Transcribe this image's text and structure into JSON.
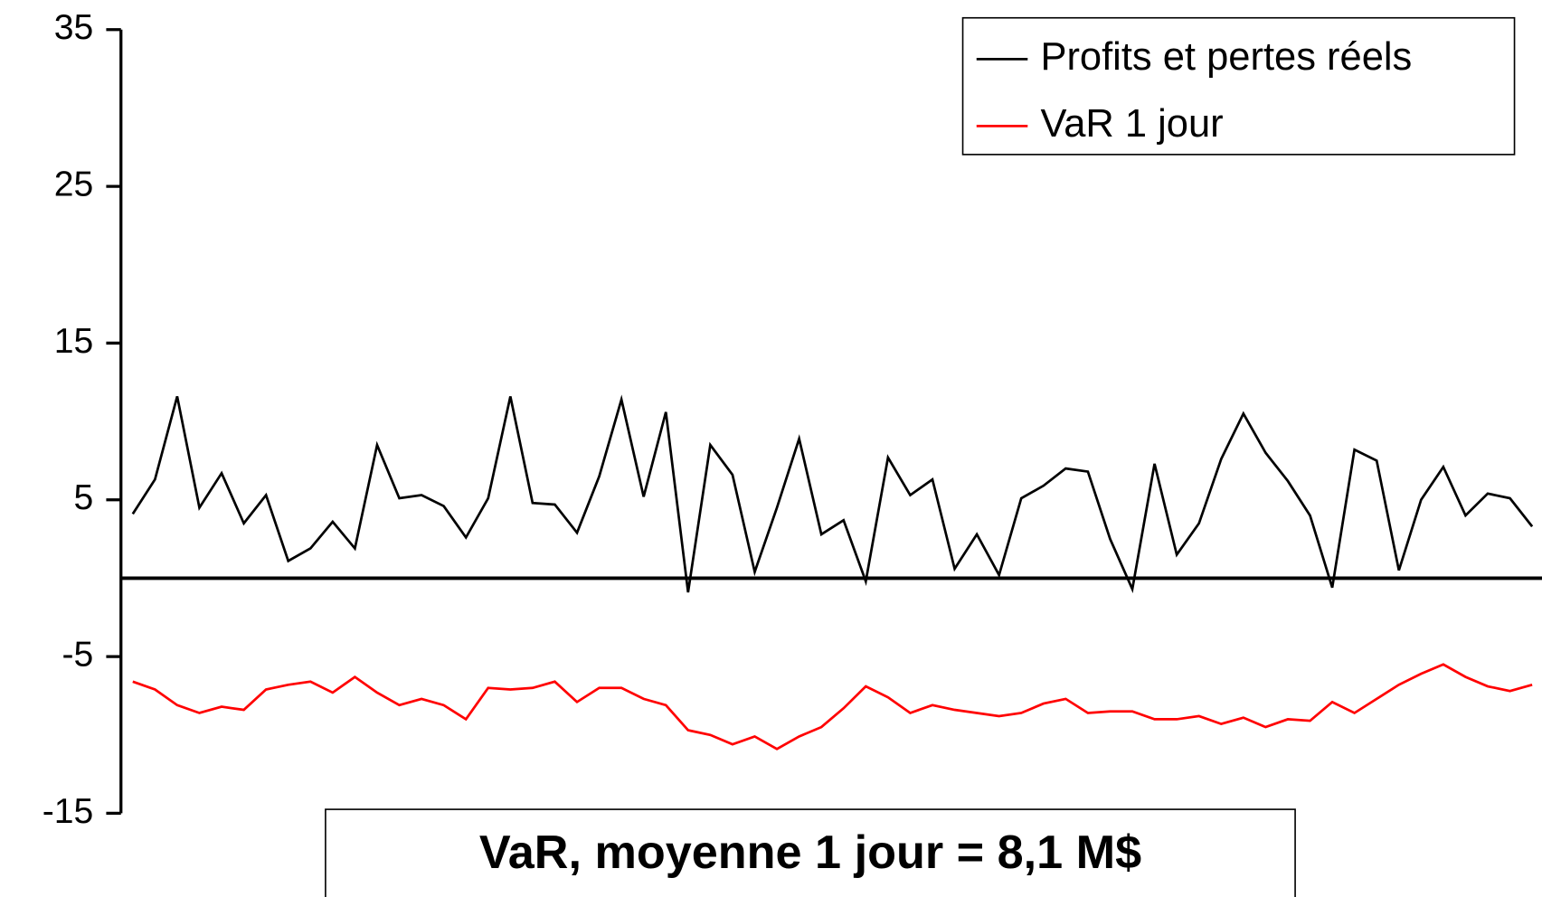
{
  "chart_data": {
    "type": "line",
    "annotation": "VaR, moyenne 1 jour = 8,1 M$",
    "ylim": [
      -15,
      35
    ],
    "yticks": [
      35,
      25,
      15,
      5,
      -5,
      -15
    ],
    "legend": "upper right",
    "series": [
      {
        "name": "Profits et pertes réels",
        "color": "#000000",
        "values": [
          4.1,
          6.3,
          11.6,
          4.5,
          6.7,
          3.5,
          5.3,
          1.1,
          1.9,
          3.6,
          1.9,
          8.5,
          5.1,
          5.3,
          4.6,
          2.6,
          5.1,
          11.6,
          4.8,
          4.7,
          2.9,
          6.5,
          11.4,
          5.2,
          10.6,
          -0.9,
          8.5,
          6.6,
          0.4,
          4.5,
          8.9,
          2.8,
          3.7,
          -0.2,
          7.7,
          5.3,
          6.3,
          0.6,
          2.8,
          0.2,
          5.1,
          5.9,
          7.0,
          6.8,
          2.5,
          -0.7,
          7.3,
          1.5,
          3.5,
          7.6,
          10.5,
          8.0,
          6.2,
          4.0,
          -0.6,
          8.2,
          7.5,
          0.5,
          5.0,
          7.1,
          4.0,
          5.4,
          5.1,
          3.3
        ]
      },
      {
        "name": "VaR 1 jour",
        "color": "#ff0000",
        "values": [
          -6.6,
          -7.1,
          -8.1,
          -8.6,
          -8.2,
          -8.4,
          -7.1,
          -6.8,
          -6.6,
          -7.3,
          -6.3,
          -7.3,
          -8.1,
          -7.7,
          -8.1,
          -9.0,
          -7.0,
          -7.1,
          -7.0,
          -6.6,
          -7.9,
          -7.0,
          -7.0,
          -7.7,
          -8.1,
          -9.7,
          -10.0,
          -10.6,
          -10.1,
          -10.9,
          -10.1,
          -9.5,
          -8.3,
          -6.9,
          -7.6,
          -8.6,
          -8.1,
          -8.4,
          -8.6,
          -8.8,
          -8.6,
          -8.0,
          -7.7,
          -8.6,
          -8.5,
          -8.5,
          -9.0,
          -9.0,
          -8.8,
          -9.3,
          -8.9,
          -9.5,
          -9.0,
          -9.1,
          -7.9,
          -8.6,
          -7.7,
          -6.8,
          -6.1,
          -5.5,
          -6.3,
          -6.9,
          -7.2,
          -6.8
        ]
      }
    ]
  }
}
